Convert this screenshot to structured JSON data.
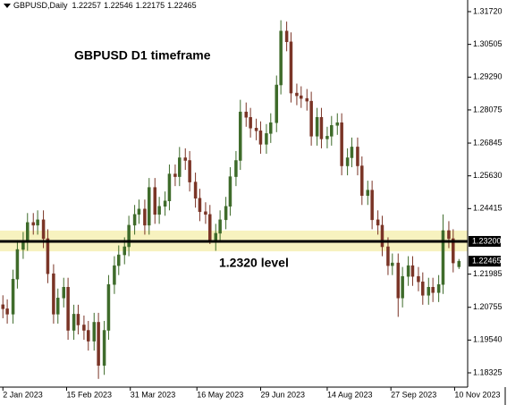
{
  "chart_data": {
    "type": "candlestick",
    "title": "GBPUSD D1 timeframe",
    "header": {
      "symbol": "GBPUSD,Daily"
    },
    "x": [
      "2023-01-02",
      "2023-01-05",
      "2023-01-09",
      "2023-01-12",
      "2023-01-16",
      "2023-01-19",
      "2023-01-23",
      "2023-01-26",
      "2023-01-30",
      "2023-02-02",
      "2023-02-06",
      "2023-02-09",
      "2023-02-13",
      "2023-02-16",
      "2023-02-20",
      "2023-02-23",
      "2023-02-27",
      "2023-03-02",
      "2023-03-06",
      "2023-03-09",
      "2023-03-13",
      "2023-03-16",
      "2023-03-20",
      "2023-03-23",
      "2023-03-27",
      "2023-03-30",
      "2023-04-03",
      "2023-04-06",
      "2023-04-10",
      "2023-04-13",
      "2023-04-17",
      "2023-04-20",
      "2023-04-24",
      "2023-04-27",
      "2023-05-01",
      "2023-05-04",
      "2023-05-08",
      "2023-05-11",
      "2023-05-15",
      "2023-05-18",
      "2023-05-22",
      "2023-05-25",
      "2023-05-29",
      "2023-06-01",
      "2023-06-05",
      "2023-06-08",
      "2023-06-12",
      "2023-06-15",
      "2023-06-19",
      "2023-06-22",
      "2023-06-26",
      "2023-06-29",
      "2023-07-03",
      "2023-07-06",
      "2023-07-10",
      "2023-07-13",
      "2023-07-17",
      "2023-07-20",
      "2023-07-24",
      "2023-07-27",
      "2023-07-31",
      "2023-08-03",
      "2023-08-07",
      "2023-08-10",
      "2023-08-14",
      "2023-08-17",
      "2023-08-21",
      "2023-08-24",
      "2023-08-28",
      "2023-08-31",
      "2023-09-04",
      "2023-09-07",
      "2023-09-11",
      "2023-09-14",
      "2023-09-18",
      "2023-09-21",
      "2023-09-25",
      "2023-09-28",
      "2023-10-02",
      "2023-10-05",
      "2023-10-09",
      "2023-10-12",
      "2023-10-16",
      "2023-10-19",
      "2023-10-23",
      "2023-10-26",
      "2023-10-30",
      "2023-11-02",
      "2023-11-06",
      "2023-11-09",
      "2023-11-13"
    ],
    "series": {
      "open": [
        1.2085,
        1.207,
        1.205,
        1.218,
        1.229,
        1.232,
        1.239,
        1.238,
        1.24,
        1.233,
        1.22,
        1.205,
        1.211,
        1.215,
        1.199,
        1.205,
        1.201,
        1.199,
        1.195,
        1.202,
        1.186,
        1.199,
        1.216,
        1.223,
        1.227,
        1.23,
        1.238,
        1.242,
        1.244,
        1.238,
        1.252,
        1.242,
        1.245,
        1.247,
        1.257,
        1.256,
        1.263,
        1.262,
        1.254,
        1.248,
        1.243,
        1.242,
        1.232,
        1.235,
        1.24,
        1.245,
        1.256,
        1.262,
        1.28,
        1.278,
        1.274,
        1.273,
        1.268,
        1.272,
        1.276,
        1.29,
        1.31,
        1.306,
        1.287,
        1.286,
        1.285,
        1.284,
        1.271,
        1.278,
        1.27,
        1.271,
        1.275,
        1.276,
        1.26,
        1.263,
        1.267,
        1.26,
        1.249,
        1.251,
        1.24,
        1.238,
        1.23,
        1.223,
        1.224,
        1.211,
        1.219,
        1.223,
        1.219,
        1.217,
        1.212,
        1.215,
        1.213,
        1.216,
        1.236,
        1.233,
        1.22257
      ],
      "high": [
        1.212,
        1.2105,
        1.2215,
        1.2325,
        1.2355,
        1.2425,
        1.2425,
        1.2435,
        1.2435,
        1.2365,
        1.2235,
        1.2145,
        1.2185,
        1.2185,
        1.2085,
        1.2085,
        1.2045,
        1.2025,
        1.2055,
        1.2055,
        1.2025,
        1.2195,
        1.2265,
        1.2305,
        1.2335,
        1.2415,
        1.2455,
        1.2475,
        1.2475,
        1.2555,
        1.2555,
        1.2485,
        1.2505,
        1.2605,
        1.2605,
        1.267,
        1.2665,
        1.2655,
        1.2575,
        1.2515,
        1.2465,
        1.2455,
        1.2385,
        1.2435,
        1.2485,
        1.2595,
        1.2655,
        1.2845,
        1.2835,
        1.2815,
        1.2775,
        1.2765,
        1.2755,
        1.2795,
        1.2935,
        1.314,
        1.3135,
        1.3095,
        1.2905,
        1.2895,
        1.2885,
        1.2875,
        1.2815,
        1.2815,
        1.2745,
        1.2785,
        1.2795,
        1.2795,
        1.2665,
        1.2705,
        1.2705,
        1.2635,
        1.2545,
        1.2545,
        1.2435,
        1.2415,
        1.2335,
        1.2275,
        1.2275,
        1.2225,
        1.2265,
        1.2265,
        1.2225,
        1.2205,
        1.2185,
        1.2185,
        1.2195,
        1.242,
        1.2395,
        1.2365,
        1.22546
      ],
      "low": [
        1.2035,
        1.2015,
        1.2015,
        1.2145,
        1.2255,
        1.2285,
        1.2345,
        1.2345,
        1.2295,
        1.2165,
        1.2015,
        1.2015,
        1.2075,
        1.1955,
        1.1955,
        1.1975,
        1.1955,
        1.1915,
        1.1915,
        1.181,
        1.1825,
        1.1955,
        1.2125,
        1.2195,
        1.2235,
        1.2265,
        1.2345,
        1.2385,
        1.2345,
        1.2345,
        1.2385,
        1.2385,
        1.2415,
        1.2435,
        1.2525,
        1.2525,
        1.2585,
        1.2505,
        1.2445,
        1.2395,
        1.2385,
        1.231,
        1.2285,
        1.2315,
        1.2365,
        1.2415,
        1.2525,
        1.2585,
        1.2745,
        1.2705,
        1.2695,
        1.2645,
        1.2645,
        1.2685,
        1.2725,
        1.2865,
        1.3025,
        1.2835,
        1.2825,
        1.2815,
        1.2805,
        1.2675,
        1.2675,
        1.2665,
        1.2665,
        1.2675,
        1.2715,
        1.2565,
        1.2565,
        1.2595,
        1.2565,
        1.2455,
        1.2455,
        1.2365,
        1.2345,
        1.2265,
        1.2195,
        1.2195,
        1.204,
        1.2075,
        1.2155,
        1.2155,
        1.2135,
        1.2085,
        1.2085,
        1.2095,
        1.2095,
        1.2125,
        1.2295,
        1.2205,
        1.22175
      ],
      "close": [
        1.207,
        1.205,
        1.218,
        1.229,
        1.232,
        1.239,
        1.238,
        1.24,
        1.233,
        1.22,
        1.205,
        1.211,
        1.215,
        1.199,
        1.205,
        1.201,
        1.199,
        1.195,
        1.202,
        1.186,
        1.199,
        1.216,
        1.223,
        1.227,
        1.23,
        1.238,
        1.242,
        1.244,
        1.238,
        1.252,
        1.242,
        1.245,
        1.247,
        1.257,
        1.256,
        1.263,
        1.262,
        1.254,
        1.248,
        1.243,
        1.242,
        1.232,
        1.235,
        1.24,
        1.245,
        1.256,
        1.262,
        1.28,
        1.278,
        1.274,
        1.273,
        1.268,
        1.272,
        1.276,
        1.29,
        1.31,
        1.306,
        1.287,
        1.286,
        1.285,
        1.284,
        1.271,
        1.278,
        1.27,
        1.271,
        1.275,
        1.276,
        1.26,
        1.263,
        1.267,
        1.26,
        1.249,
        1.251,
        1.24,
        1.238,
        1.23,
        1.223,
        1.224,
        1.211,
        1.219,
        1.223,
        1.219,
        1.217,
        1.212,
        1.215,
        1.213,
        1.216,
        1.236,
        1.233,
        1.224,
        1.22465
      ]
    },
    "colors": {
      "up": "#3e6b2a",
      "down": "#7a3426",
      "zone": "#f7f2bf",
      "level": "#000000"
    },
    "xlim": [
      "2022-12-31",
      "2023-11-19"
    ],
    "xticks": [
      {
        "value": "2023-01-02",
        "label": "2 Jan 2023"
      },
      {
        "value": "2023-02-15",
        "label": "15 Feb 2023"
      },
      {
        "value": "2023-03-31",
        "label": "31 Mar 2023"
      },
      {
        "value": "2023-05-16",
        "label": "16 May 2023"
      },
      {
        "value": "2023-06-29",
        "label": "29 Jun 2023"
      },
      {
        "value": "2023-08-14",
        "label": "14 Aug 2023"
      },
      {
        "value": "2023-09-27",
        "label": "27 Sep 2023"
      },
      {
        "value": "2023-11-10",
        "label": "10 Nov 2023"
      }
    ],
    "ylim": [
      1.17795,
      1.32151
    ],
    "yticks": [
      {
        "value": 1.3172,
        "label": "1.31720"
      },
      1.30505,
      {
        "value": 1.2929,
        "label": "1.29290"
      },
      1.28075,
      1.26845,
      {
        "value": 1.2563,
        "label": "1.25630"
      },
      1.24415,
      1.21985,
      1.20755,
      {
        "value": 1.1954,
        "label": "1.19540"
      },
      1.18325
    ],
    "level": {
      "value": 1.232,
      "label": "1.23200"
    },
    "zone": [
      1.2283,
      1.236
    ],
    "annotations": [
      "1.2320 level"
    ]
  }
}
